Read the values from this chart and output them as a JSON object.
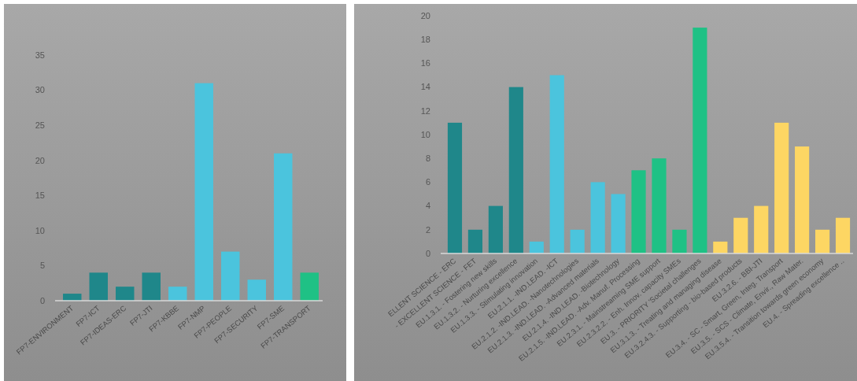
{
  "chart_data": [
    {
      "type": "bar",
      "categories": [
        "FP7-ENVIRONMENT",
        "FP7-ICT",
        "FP7-IDEAS-ERC",
        "FP7-JTI",
        "FP7-KBBE",
        "FP7-NMP",
        "FP7-PEOPLE",
        "FP7-SECURITY",
        "FP7-SME",
        "FP7-TRANSPORT"
      ],
      "values": [
        1,
        4,
        2,
        4,
        2,
        31,
        7,
        3,
        21,
        4
      ],
      "colors": [
        "#1f878a",
        "#1f878a",
        "#1f878a",
        "#1f878a",
        "#4bc4dd",
        "#4bc4dd",
        "#4bc4dd",
        "#4bc4dd",
        "#4bc4dd",
        "#1fc185"
      ],
      "ylim": [
        0,
        35
      ],
      "yticks": [
        0,
        5,
        10,
        15,
        20,
        25,
        30,
        35
      ]
    },
    {
      "type": "bar",
      "categories": [
        "ELLENT SCIENCE - ERC",
        "- EXCELLENT SCIENCE - FET",
        "EU.1.3.1. - Fostering new skills",
        "EU.1.3.2. - Nurturing excellence",
        "EU.1.3.3. - Stimulating innovation",
        "EU.2.1.1. -IND.LEAD. -ICT",
        "EU.2.1.2. -IND.LEAD. -Nanotechnologies",
        "EU.2.1.3. -IND.LEAD. -Advanced materials",
        "EU.2.1.4. -IND.LEAD. -Biotechnology",
        "EU.2.1.5. -IND.LEAD. -Adv. Manuf. Processing",
        "EU.2.3.1. - Mainstreaming SME support",
        "EU.2.3.2.2. - Enh. Innov. capacity SMEs",
        "EU.3. - PRIORITY 'Societal challenges",
        "EU.3.1.3. - Treating and managing disease",
        "EU.3.2.4.3. - Supporting - bio-based products",
        "EU.3.2.6. - BBI-JTI",
        "EU.3.4. - SC - Smart, Green, Integ. Transport",
        "EU.3.5. - SCS - Climate, Envir., Raw Mater.",
        "EU.3.5.4. - Transition towards green economy",
        "EU.4. - Spreading excellence .."
      ],
      "values": [
        11,
        2,
        4,
        14,
        1,
        15,
        2,
        6,
        5,
        7,
        8,
        2,
        19,
        1,
        3,
        4,
        11,
        9,
        2,
        3
      ],
      "colors": [
        "#1f878a",
        "#1f878a",
        "#1f878a",
        "#1f878a",
        "#4bc4dd",
        "#4bc4dd",
        "#4bc4dd",
        "#4bc4dd",
        "#4bc4dd",
        "#1fc185",
        "#1fc185",
        "#1fc185",
        "#1fc185",
        "#fdd663",
        "#fdd663",
        "#fdd663",
        "#fdd663",
        "#fdd663",
        "#fdd663",
        "#fdd663"
      ],
      "ylim": [
        0,
        20
      ],
      "yticks": [
        0,
        2,
        4,
        6,
        8,
        10,
        12,
        14,
        16,
        18,
        20
      ]
    }
  ]
}
